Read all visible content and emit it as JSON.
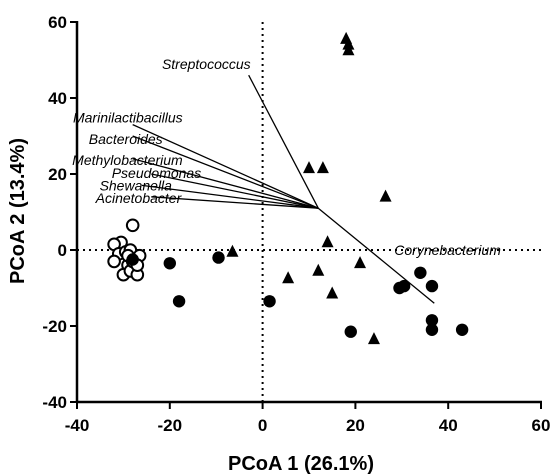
{
  "chart_data": {
    "type": "scatter",
    "title": "",
    "xlabel": "PCoA 1 (26.1%)",
    "ylabel": "PCoA 2 (13.4%)",
    "xlim": [
      -40,
      60
    ],
    "ylim": [
      -40,
      60
    ],
    "x_ticks": [
      -40,
      -20,
      0,
      20,
      40,
      60
    ],
    "y_ticks": [
      -40,
      -20,
      0,
      20,
      40,
      60
    ],
    "grid": false,
    "reference_lines": {
      "x": 0,
      "y": 0,
      "style": "dotted"
    },
    "series": [
      {
        "marker": "open-circle",
        "points": [
          [
            -28,
            6.5
          ],
          [
            -30.5,
            2
          ],
          [
            -32,
            1.5
          ],
          [
            -31,
            -1
          ],
          [
            -29.5,
            -0.5
          ],
          [
            -28.5,
            0
          ],
          [
            -26.5,
            -1.5
          ],
          [
            -32,
            -3
          ],
          [
            -29,
            -4
          ],
          [
            -30,
            -6.5
          ],
          [
            -28.5,
            -5.5
          ],
          [
            -27,
            -6.5
          ],
          [
            -29,
            -1.5
          ],
          [
            -28,
            -3
          ],
          [
            -27,
            -4
          ]
        ]
      },
      {
        "marker": "filled-circle",
        "points": [
          [
            -20,
            -3.5
          ],
          [
            -18,
            -13.5
          ],
          [
            -9.5,
            -2
          ],
          [
            -28,
            -2.5
          ],
          [
            1.5,
            -13.5
          ],
          [
            19,
            -21.5
          ],
          [
            29.5,
            -10
          ],
          [
            30.5,
            -9.5
          ],
          [
            34,
            -6
          ],
          [
            36.5,
            -9.5
          ],
          [
            36.5,
            -18.5
          ],
          [
            36.5,
            -21
          ],
          [
            43,
            -21
          ]
        ]
      },
      {
        "marker": "filled-triangle",
        "points": [
          [
            18,
            55.5
          ],
          [
            18.5,
            54
          ],
          [
            18.5,
            52.5
          ],
          [
            10,
            21.5
          ],
          [
            13,
            21.5
          ],
          [
            26.5,
            14
          ],
          [
            14,
            2
          ],
          [
            -6.5,
            -0.5
          ],
          [
            21,
            -3.5
          ],
          [
            12,
            -5.5
          ],
          [
            5.5,
            -7.5
          ],
          [
            15,
            -11.5
          ],
          [
            24,
            -23.5
          ]
        ]
      }
    ],
    "vectors": {
      "origin": [
        12,
        11
      ],
      "items": [
        {
          "label": "Streptococcus",
          "end": [
            -3,
            46
          ]
        },
        {
          "label": "Marinilactibacillus",
          "end": [
            -28,
            33
          ]
        },
        {
          "label": "Bacteroides",
          "end": [
            -28,
            30
          ]
        },
        {
          "label": "Methylobacterium",
          "end": [
            -28,
            24
          ]
        },
        {
          "label": "Pseudomonas",
          "end": [
            -24,
            20
          ]
        },
        {
          "label": "Shewanella",
          "end": [
            -26,
            17
          ]
        },
        {
          "label": "Acinetobacter",
          "end": [
            -24,
            14
          ]
        },
        {
          "label": "Corynebacterium",
          "end": [
            37,
            -14
          ]
        }
      ]
    }
  }
}
